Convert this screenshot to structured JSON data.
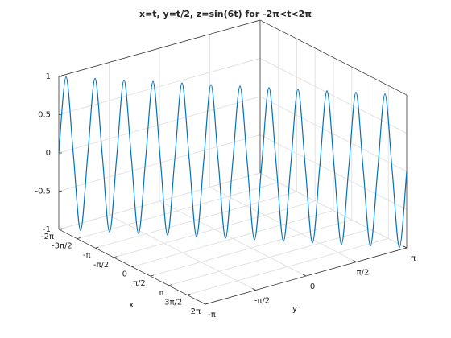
{
  "chart_data": {
    "type": "line3d",
    "title": "x=t, y=t/2, z=sin(6t) for -2π<t<2π",
    "xlabel": "x",
    "ylabel": "y",
    "xlim": [
      -6.283,
      6.283
    ],
    "ylim": [
      -3.142,
      3.142
    ],
    "zlim": [
      -1,
      1
    ],
    "xticks": [
      {
        "value": -6.283,
        "label": "-2π"
      },
      {
        "value": -4.712,
        "label": "-3π/2"
      },
      {
        "value": -3.142,
        "label": "-π"
      },
      {
        "value": -1.571,
        "label": "-π/2"
      },
      0,
      {
        "value": 1.571,
        "label": "π/2"
      },
      {
        "value": 3.142,
        "label": "π"
      },
      {
        "value": 4.712,
        "label": "3π/2"
      },
      {
        "value": 6.283,
        "label": "2π"
      }
    ],
    "yticks": [
      {
        "value": -3.142,
        "label": "-π"
      },
      {
        "value": -1.571,
        "label": "-π/2"
      },
      0,
      {
        "value": 1.571,
        "label": "π/2"
      },
      {
        "value": 3.142,
        "label": "π"
      }
    ],
    "zticks": [
      -1,
      -0.5,
      0,
      0.5,
      1
    ],
    "grid": true,
    "series": [
      {
        "color": "#0072bd",
        "x": [
          -6.283,
          -6.021,
          -5.76,
          -5.498,
          -5.236,
          -4.974,
          -4.712,
          -4.451,
          -4.189,
          -3.927,
          -3.665,
          -3.403,
          -3.142,
          -2.88,
          -2.618,
          -2.356,
          -2.094,
          -1.833,
          -1.571,
          -1.309,
          -1.047,
          -0.785,
          -0.524,
          -0.262,
          0,
          0.262,
          0.524,
          0.785,
          1.047,
          1.309,
          1.571,
          1.833,
          2.094,
          2.356,
          2.618,
          2.88,
          3.142,
          3.403,
          3.665,
          3.927,
          4.189,
          4.451,
          4.712,
          4.974,
          5.236,
          5.498,
          5.76,
          6.021,
          6.283
        ],
        "y": [
          -3.142,
          -3.011,
          -2.88,
          -2.749,
          -2.618,
          -2.487,
          -2.356,
          -2.225,
          -2.094,
          -1.963,
          -1.833,
          -1.702,
          -1.571,
          -1.44,
          -1.309,
          -1.178,
          -1.047,
          -0.916,
          -0.785,
          -0.654,
          -0.524,
          -0.393,
          -0.262,
          -0.131,
          0,
          0.131,
          0.262,
          0.393,
          0.524,
          0.654,
          0.785,
          0.916,
          1.047,
          1.178,
          1.309,
          1.44,
          1.571,
          1.702,
          1.833,
          1.963,
          2.094,
          2.225,
          2.356,
          2.487,
          2.618,
          2.749,
          2.88,
          3.011,
          3.142
        ],
        "z": [
          0,
          1,
          0,
          -1,
          0,
          1,
          0,
          -1,
          0,
          1,
          0,
          -1,
          0,
          1,
          0,
          -1,
          0,
          1,
          0,
          -1,
          0,
          1,
          0,
          -1,
          0,
          1,
          0,
          -1,
          0,
          1,
          0,
          -1,
          0,
          1,
          0,
          -1,
          0,
          1,
          0,
          -1,
          0,
          1,
          0,
          -1,
          0,
          1,
          0,
          -1,
          0
        ]
      }
    ]
  }
}
